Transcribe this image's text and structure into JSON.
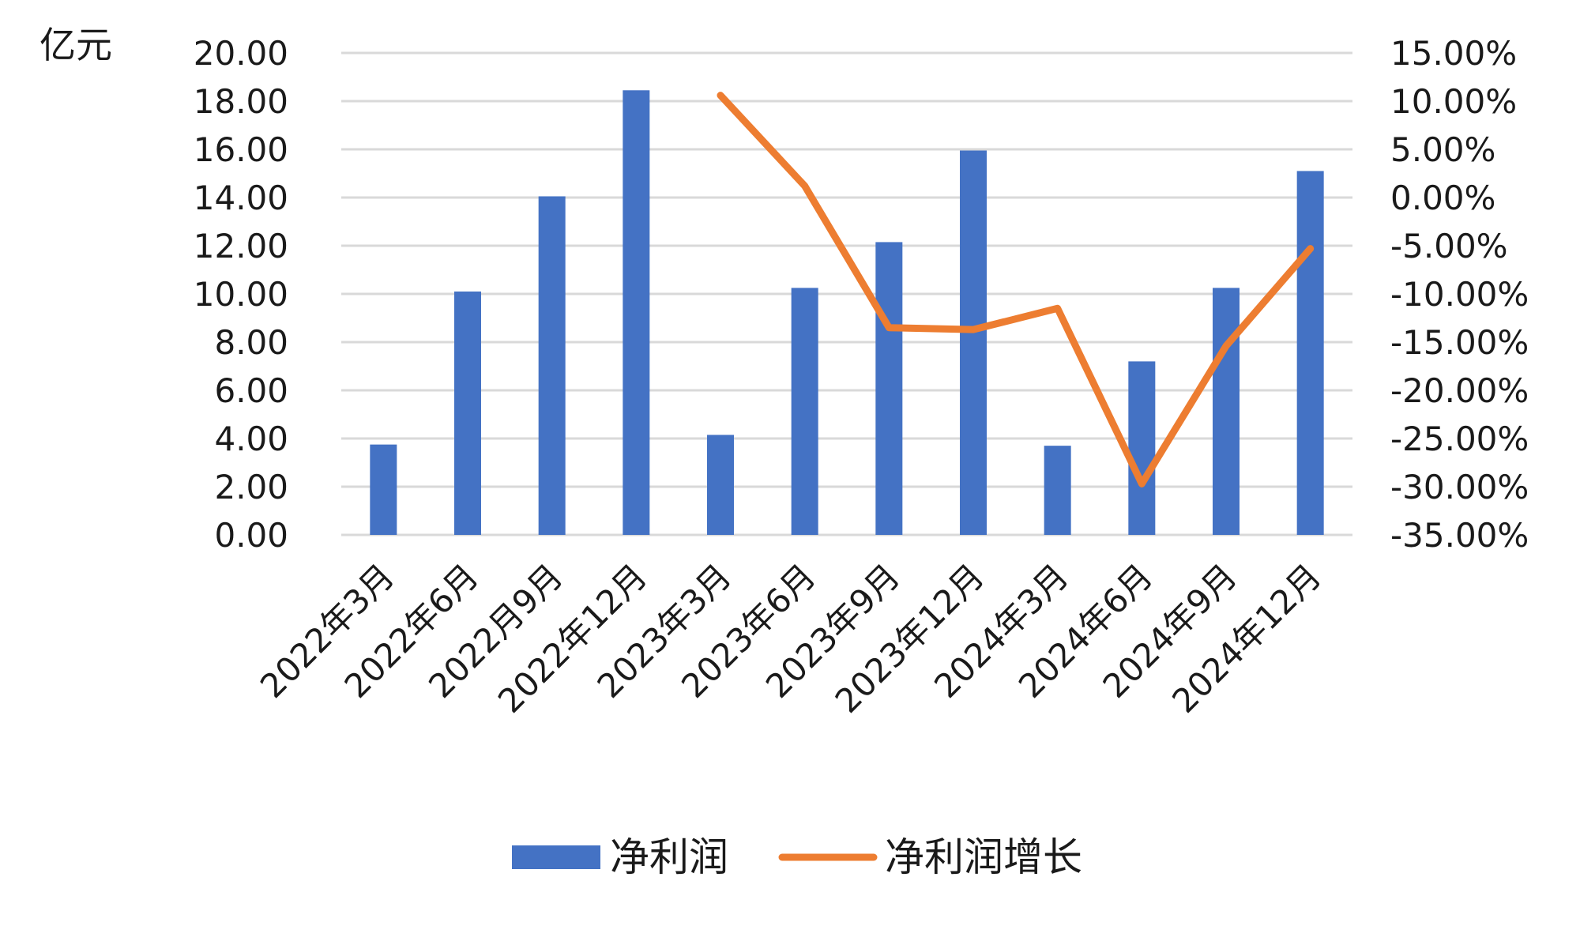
{
  "chart_data": {
    "type": "bar",
    "title": "",
    "xlabel": "",
    "ylabel": "亿元",
    "y2label": "",
    "categories": [
      "2022年3月",
      "2022年6月",
      "2022月9月",
      "2022年12月",
      "2023年3月",
      "2023年6月",
      "2023年9月",
      "2023年12月",
      "2024年3月",
      "2024年6月",
      "2024年9月",
      "2024年12月"
    ],
    "ylim": [
      0,
      20
    ],
    "y2lim": [
      -35,
      15
    ],
    "yticks": [
      "0.00",
      "2.00",
      "4.00",
      "6.00",
      "8.00",
      "10.00",
      "12.00",
      "14.00",
      "16.00",
      "18.00",
      "20.00"
    ],
    "y2ticks": [
      "-35.00%",
      "-30.00%",
      "-25.00%",
      "-20.00%",
      "-15.00%",
      "-10.00%",
      "-5.00%",
      "0.00%",
      "5.00%",
      "10.00%",
      "15.00%"
    ],
    "grid": true,
    "legend_position": "bottom",
    "series": [
      {
        "name": "净利润",
        "type": "bar",
        "axis": "left",
        "color": "#4472C4",
        "values": [
          3.75,
          10.1,
          14.05,
          18.45,
          4.15,
          10.25,
          12.15,
          15.95,
          3.7,
          7.2,
          10.25,
          15.1
        ]
      },
      {
        "name": "净利润增长",
        "type": "line",
        "axis": "right",
        "color": "#ED7D31",
        "values": [
          null,
          null,
          null,
          null,
          10.6,
          1.2,
          -13.5,
          -13.7,
          -11.5,
          -29.7,
          -15.4,
          -5.3
        ]
      }
    ]
  }
}
